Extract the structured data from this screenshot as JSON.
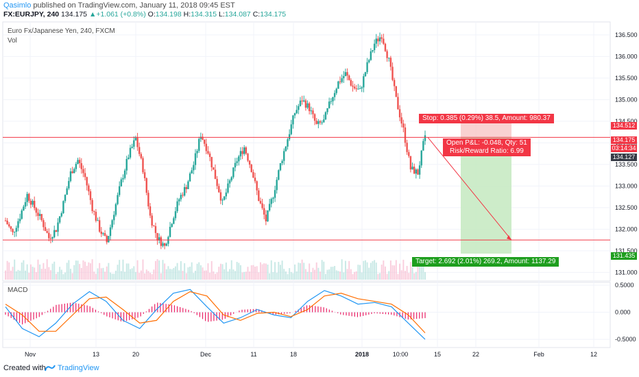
{
  "header": {
    "author": "Qasimlo",
    "published": " published on TradingView.com, January 11, 2018 09:45 EST",
    "symbol": "FX:EURJPY, 240",
    "last": "134.175",
    "change": "+1.061 (+0.8%)",
    "o_label": "O:",
    "o_value": "134.198",
    "h_label": "H:",
    "h_value": "134.315",
    "l_label": "L:",
    "l_value": "134.087",
    "c_label": "C:",
    "c_value": "134.175"
  },
  "chart": {
    "title": "Euro Fx/Japanese Yen, 240, FXCM",
    "volume_label": "Vol",
    "macd_label": "MACD"
  },
  "position": {
    "stop_label": "Stop: 0.385 (0.29%) 38.5, Amount: 980.37",
    "target_label": "Target: 2.692 (2.01%) 269.2, Amount: 1137.29",
    "pl_line1": "Open P&L: -0.048, Qty: 51",
    "pl_line2": "Risk/Reward Ratio: 6.99"
  },
  "price_tags": {
    "stop": "134.512",
    "current": "134.175",
    "countdown": "03:14:34",
    "entry": "134.127",
    "target": "131.435"
  },
  "colors": {
    "up": "#26a69a",
    "down": "#ef5350",
    "stop_fill": "#f7c6c6",
    "target_fill": "#c8eac3",
    "line": "#f23645",
    "macd": "#2196f3",
    "signal": "#ff6d00",
    "hist": "#e91e63"
  },
  "chart_data": {
    "type": "candlestick",
    "price_axis": {
      "ticks": [
        "136.500",
        "136.000",
        "135.500",
        "135.000",
        "134.500",
        "134.000",
        "133.500",
        "133.000",
        "132.500",
        "132.000",
        "131.500",
        "131.000"
      ],
      "ylim": [
        130.8,
        136.8
      ]
    },
    "macd_axis": {
      "ticks": [
        "0.5000",
        "0.000",
        "-0.5000"
      ],
      "ylim": [
        -0.65,
        0.55
      ]
    },
    "time_axis": {
      "ticks": [
        "Nov",
        "13",
        "20",
        "Dec",
        "11",
        "18",
        "2018",
        "10:00",
        "15",
        "22",
        "Feb",
        "12"
      ]
    },
    "close_path": [
      132.2,
      131.9,
      132.3,
      132.8,
      132.5,
      132.2,
      131.8,
      132.0,
      132.6,
      133.3,
      133.6,
      133.2,
      132.5,
      132.0,
      131.7,
      132.4,
      133.1,
      133.7,
      134.1,
      133.4,
      132.3,
      131.8,
      131.6,
      132.2,
      132.7,
      133.0,
      133.5,
      134.2,
      133.8,
      133.2,
      132.6,
      133.1,
      133.6,
      133.9,
      133.4,
      132.7,
      132.2,
      132.8,
      133.5,
      134.1,
      134.7,
      135.0,
      134.8,
      134.4,
      134.5,
      135.0,
      135.4,
      135.6,
      135.3,
      135.2,
      135.8,
      136.3,
      136.5,
      135.9,
      135.0,
      134.3,
      133.4,
      133.3,
      134.175
    ],
    "horizontal_lines": [
      134.127,
      131.75
    ],
    "stop_price": 134.512,
    "entry_price": 134.127,
    "target_price": 131.435,
    "current_price": 134.175,
    "macd_series": [
      0.1,
      -0.3,
      -0.45,
      -0.2,
      0.15,
      0.38,
      0.2,
      -0.15,
      -0.3,
      0.05,
      0.35,
      0.42,
      0.1,
      -0.2,
      -0.1,
      0.05,
      -0.05,
      -0.1,
      0.2,
      0.4,
      0.3,
      0.15,
      0.18,
      0.1,
      -0.2,
      -0.5
    ],
    "signal_series": [
      0.15,
      -0.05,
      -0.35,
      -0.35,
      -0.05,
      0.25,
      0.28,
      0.05,
      -0.2,
      -0.15,
      0.2,
      0.38,
      0.3,
      -0.05,
      -0.15,
      -0.02,
      0.0,
      -0.08,
      0.05,
      0.3,
      0.35,
      0.25,
      0.2,
      0.15,
      -0.05,
      -0.38
    ]
  },
  "footer": {
    "created_with": "Created with",
    "brand": "TradingView"
  }
}
